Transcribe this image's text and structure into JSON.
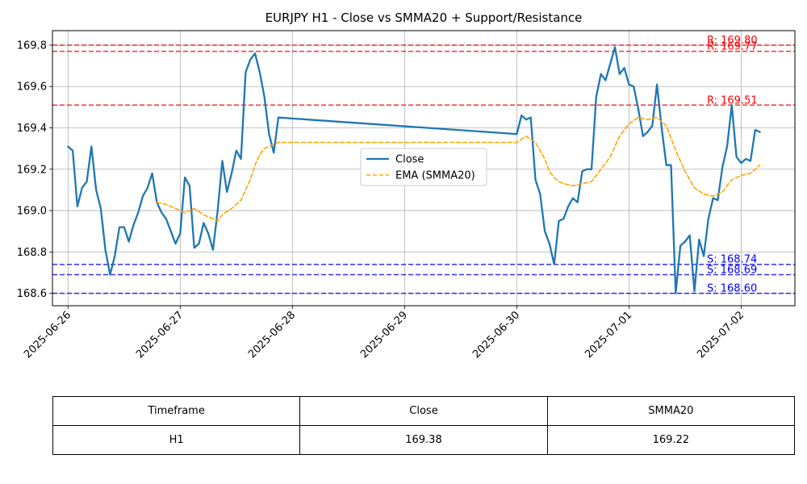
{
  "chart_data": {
    "type": "line",
    "title": "EURJPY H1 - Close vs SMMA20 + Support/Resistance",
    "xlabel": "",
    "ylabel": "",
    "ylim": [
      168.54,
      169.87
    ],
    "xlim": [
      "2025-06-25T20:40",
      "2025-07-02T11:30"
    ],
    "yticks": [
      "168.6",
      "168.8",
      "169.0",
      "169.2",
      "169.4",
      "169.6",
      "169.8"
    ],
    "yticks_values": [
      168.6,
      168.8,
      169.0,
      169.2,
      169.4,
      169.6,
      169.8
    ],
    "xticks": [
      "2025-06-26",
      "2025-06-27",
      "2025-06-28",
      "2025-06-29",
      "2025-06-30",
      "2025-07-01",
      "2025-07-02"
    ],
    "grid": true,
    "legend_position": "center",
    "colors": {
      "close": "#1f77b4",
      "smma": "#ffa500",
      "resistance": "#ff0000",
      "support": "#0000ff"
    },
    "series": [
      {
        "name": "Close",
        "style": "solid",
        "x": [
          "2025-06-26T00:00",
          "2025-06-26T01:00",
          "2025-06-26T02:00",
          "2025-06-26T03:00",
          "2025-06-26T04:00",
          "2025-06-26T05:00",
          "2025-06-26T06:00",
          "2025-06-26T07:00",
          "2025-06-26T08:00",
          "2025-06-26T09:00",
          "2025-06-26T10:00",
          "2025-06-26T11:00",
          "2025-06-26T12:00",
          "2025-06-26T13:00",
          "2025-06-26T14:00",
          "2025-06-26T15:00",
          "2025-06-26T16:00",
          "2025-06-26T17:00",
          "2025-06-26T18:00",
          "2025-06-26T19:00",
          "2025-06-26T20:00",
          "2025-06-26T21:00",
          "2025-06-26T22:00",
          "2025-06-26T23:00",
          "2025-06-27T00:00",
          "2025-06-27T01:00",
          "2025-06-27T02:00",
          "2025-06-27T03:00",
          "2025-06-27T04:00",
          "2025-06-27T05:00",
          "2025-06-27T06:00",
          "2025-06-27T07:00",
          "2025-06-27T08:00",
          "2025-06-27T09:00",
          "2025-06-27T10:00",
          "2025-06-27T11:00",
          "2025-06-27T12:00",
          "2025-06-27T13:00",
          "2025-06-27T14:00",
          "2025-06-27T15:00",
          "2025-06-27T16:00",
          "2025-06-27T17:00",
          "2025-06-27T18:00",
          "2025-06-27T19:00",
          "2025-06-27T20:00",
          "2025-06-27T21:00",
          "2025-06-30T00:00",
          "2025-06-30T01:00",
          "2025-06-30T02:00",
          "2025-06-30T03:00",
          "2025-06-30T04:00",
          "2025-06-30T05:00",
          "2025-06-30T06:00",
          "2025-06-30T07:00",
          "2025-06-30T08:00",
          "2025-06-30T09:00",
          "2025-06-30T10:00",
          "2025-06-30T11:00",
          "2025-06-30T12:00",
          "2025-06-30T13:00",
          "2025-06-30T14:00",
          "2025-06-30T15:00",
          "2025-06-30T16:00",
          "2025-06-30T17:00",
          "2025-06-30T18:00",
          "2025-06-30T19:00",
          "2025-06-30T20:00",
          "2025-06-30T21:00",
          "2025-06-30T22:00",
          "2025-06-30T23:00",
          "2025-07-01T00:00",
          "2025-07-01T01:00",
          "2025-07-01T02:00",
          "2025-07-01T03:00",
          "2025-07-01T04:00",
          "2025-07-01T05:00",
          "2025-07-01T06:00",
          "2025-07-01T07:00",
          "2025-07-01T08:00",
          "2025-07-01T09:00",
          "2025-07-01T10:00",
          "2025-07-01T11:00",
          "2025-07-01T12:00",
          "2025-07-01T13:00",
          "2025-07-01T14:00",
          "2025-07-01T15:00",
          "2025-07-01T16:00",
          "2025-07-01T17:00",
          "2025-07-01T18:00",
          "2025-07-01T19:00",
          "2025-07-01T20:00",
          "2025-07-01T21:00",
          "2025-07-01T22:00",
          "2025-07-01T23:00",
          "2025-07-02T00:00",
          "2025-07-02T01:00",
          "2025-07-02T02:00",
          "2025-07-02T03:00",
          "2025-07-02T04:00"
        ],
        "values": [
          169.31,
          169.29,
          169.02,
          169.11,
          169.14,
          169.31,
          169.1,
          169.01,
          168.81,
          168.69,
          168.78,
          168.92,
          168.92,
          168.85,
          168.93,
          168.99,
          169.07,
          169.11,
          169.18,
          169.04,
          168.99,
          168.96,
          168.9,
          168.84,
          168.89,
          169.16,
          169.12,
          168.82,
          168.84,
          168.94,
          168.89,
          168.81,
          169.0,
          169.24,
          169.09,
          169.18,
          169.29,
          169.25,
          169.67,
          169.73,
          169.76,
          169.67,
          169.55,
          169.37,
          169.28,
          169.45,
          169.37,
          169.46,
          169.44,
          169.45,
          169.15,
          169.08,
          168.9,
          168.84,
          168.74,
          168.95,
          168.96,
          169.02,
          169.06,
          169.04,
          169.19,
          169.2,
          169.2,
          169.55,
          169.66,
          169.63,
          169.71,
          169.79,
          169.66,
          169.69,
          169.61,
          169.6,
          169.49,
          169.36,
          169.38,
          169.41,
          169.61,
          169.4,
          169.22,
          169.22,
          168.6,
          168.83,
          168.85,
          168.88,
          168.61,
          168.86,
          168.78,
          168.96,
          169.06,
          169.05,
          169.21,
          169.31,
          169.51,
          169.26,
          169.23,
          169.25,
          169.24,
          169.39,
          169.38
        ]
      },
      {
        "name": "EMA (SMMA20)",
        "style": "dashed",
        "x": [
          "2025-06-26T19:00",
          "2025-06-26T21:00",
          "2025-06-26T23:00",
          "2025-06-27T01:00",
          "2025-06-27T03:00",
          "2025-06-27T05:00",
          "2025-06-27T07:00",
          "2025-06-27T08:00",
          "2025-06-27T09:00",
          "2025-06-27T11:00",
          "2025-06-27T13:00",
          "2025-06-27T15:00",
          "2025-06-27T16:00",
          "2025-06-27T17:00",
          "2025-06-27T18:00",
          "2025-06-27T19:00",
          "2025-06-27T21:00",
          "2025-06-30T00:00",
          "2025-06-30T02:00",
          "2025-06-30T04:00",
          "2025-06-30T06:00",
          "2025-06-30T07:00",
          "2025-06-30T08:00",
          "2025-06-30T09:00",
          "2025-06-30T10:00",
          "2025-06-30T12:00",
          "2025-06-30T14:00",
          "2025-06-30T16:00",
          "2025-06-30T18:00",
          "2025-06-30T20:00",
          "2025-06-30T21:00",
          "2025-06-30T22:00",
          "2025-07-01T00:00",
          "2025-07-01T02:00",
          "2025-07-01T04:00",
          "2025-07-01T06:00",
          "2025-07-01T08:00",
          "2025-07-01T09:00",
          "2025-07-01T10:00",
          "2025-07-01T12:00",
          "2025-07-01T14:00",
          "2025-07-01T16:00",
          "2025-07-01T18:00",
          "2025-07-01T20:00",
          "2025-07-01T22:00",
          "2025-07-02T00:00",
          "2025-07-02T02:00",
          "2025-07-02T04:00"
        ],
        "values": [
          169.04,
          169.03,
          169.01,
          168.99,
          169.01,
          168.98,
          168.96,
          168.95,
          168.98,
          169.01,
          169.05,
          169.15,
          169.22,
          169.27,
          169.3,
          169.31,
          169.33,
          169.33,
          169.36,
          169.33,
          169.25,
          169.19,
          169.16,
          169.14,
          169.13,
          169.12,
          169.13,
          169.14,
          169.2,
          169.26,
          169.31,
          169.36,
          169.42,
          169.45,
          169.44,
          169.45,
          169.41,
          169.35,
          169.29,
          169.19,
          169.11,
          169.08,
          169.07,
          169.09,
          169.15,
          169.17,
          169.18,
          169.22
        ]
      }
    ],
    "levels": [
      {
        "kind": "resistance",
        "value": 169.8,
        "label": "R: 169.80"
      },
      {
        "kind": "resistance",
        "value": 169.77,
        "label": "R: 169.77"
      },
      {
        "kind": "resistance",
        "value": 169.51,
        "label": "R: 169.51"
      },
      {
        "kind": "support",
        "value": 168.74,
        "label": "S: 168.74"
      },
      {
        "kind": "support",
        "value": 168.69,
        "label": "S: 168.69"
      },
      {
        "kind": "support",
        "value": 168.6,
        "label": "S: 168.60"
      }
    ]
  },
  "table": {
    "headers": [
      "Timeframe",
      "Close",
      "SMMA20"
    ],
    "row": [
      "H1",
      "169.38",
      "169.22"
    ]
  }
}
